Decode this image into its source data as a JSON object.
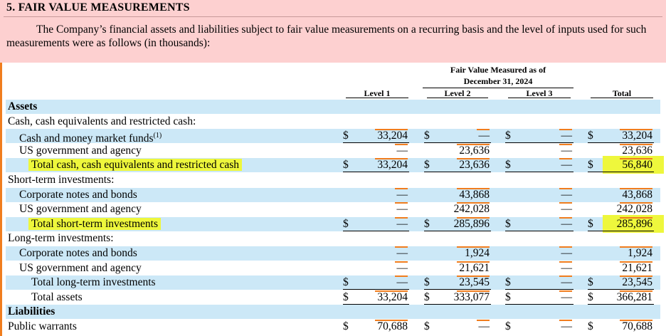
{
  "section_title": "5. FAIR VALUE MEASUREMENTS",
  "intro": "The Company’s financial assets and liabilities subject to fair value measurements on a recurring basis and the level of inputs used for such measurements were as follows (in thousands):",
  "table": {
    "group_header_line1": "Fair Value Measured as of",
    "group_header_line2": "December 31, 2024",
    "columns": [
      "Level 1",
      "Level 2",
      "Level 3",
      "Total"
    ],
    "rows": [
      {
        "label": "Assets",
        "bold": true,
        "indent": 0,
        "values": [
          "",
          "",
          "",
          ""
        ],
        "dollars": false
      },
      {
        "label": "Cash, cash equivalents and restricted cash:",
        "indent": 0,
        "values": [
          "",
          "",
          "",
          ""
        ],
        "dollars": false
      },
      {
        "label": "Cash and money market funds",
        "sup": "(1)",
        "indent": 1,
        "values": [
          "33,204",
          "—",
          "—",
          "33,204"
        ],
        "dollars": true
      },
      {
        "label": "US government and agency",
        "indent": 1,
        "values": [
          "—",
          "23,636",
          "—",
          "23,636"
        ],
        "dollars": false
      },
      {
        "label": "Total cash, cash equivalents and restricted cash",
        "indent": 2,
        "highlight": true,
        "values": [
          "33,204",
          "23,636",
          "—",
          "56,840"
        ],
        "dollars": true,
        "highlight_total": true
      },
      {
        "label": "Short-term investments:",
        "indent": 0,
        "values": [
          "",
          "",
          "",
          ""
        ],
        "dollars": false
      },
      {
        "label": "Corporate notes and bonds",
        "indent": 1,
        "values": [
          "—",
          "43,868",
          "—",
          "43,868"
        ],
        "dollars": false
      },
      {
        "label": "US government and agency",
        "indent": 1,
        "values": [
          "—",
          "242,028",
          "—",
          "242,028"
        ],
        "dollars": false
      },
      {
        "label": "Total short-term investments",
        "indent": 2,
        "highlight": true,
        "values": [
          "—",
          "285,896",
          "—",
          "285,896"
        ],
        "dollars": true,
        "highlight_total": true
      },
      {
        "label": "Long-term investments:",
        "indent": 0,
        "values": [
          "",
          "",
          "",
          ""
        ],
        "dollars": false
      },
      {
        "label": "Corporate notes and bonds",
        "indent": 1,
        "values": [
          "—",
          "1,924",
          "—",
          "1,924"
        ],
        "dollars": false
      },
      {
        "label": "US government and agency",
        "indent": 1,
        "values": [
          "—",
          "21,621",
          "—",
          "21,621"
        ],
        "dollars": false
      },
      {
        "label": "Total long-term investments",
        "indent": 2,
        "values": [
          "—",
          "23,545",
          "—",
          "23,545"
        ],
        "dollars": true
      },
      {
        "label": "Total assets",
        "indent": 2,
        "values": [
          "33,204",
          "333,077",
          "—",
          "366,281"
        ],
        "dollars": true
      },
      {
        "label": "Liabilities",
        "bold": true,
        "indent": 0,
        "values": [
          "",
          "",
          "",
          ""
        ],
        "dollars": false
      },
      {
        "label": "Public warrants",
        "indent": 0,
        "values": [
          "70,688",
          "—",
          "—",
          "70,688"
        ],
        "dollars": true
      }
    ]
  },
  "colors": {
    "header_bg": "#fdd0d0",
    "row_band": "#cce8f7",
    "highlight": "#eef73c",
    "accent": "#f07d1e"
  }
}
